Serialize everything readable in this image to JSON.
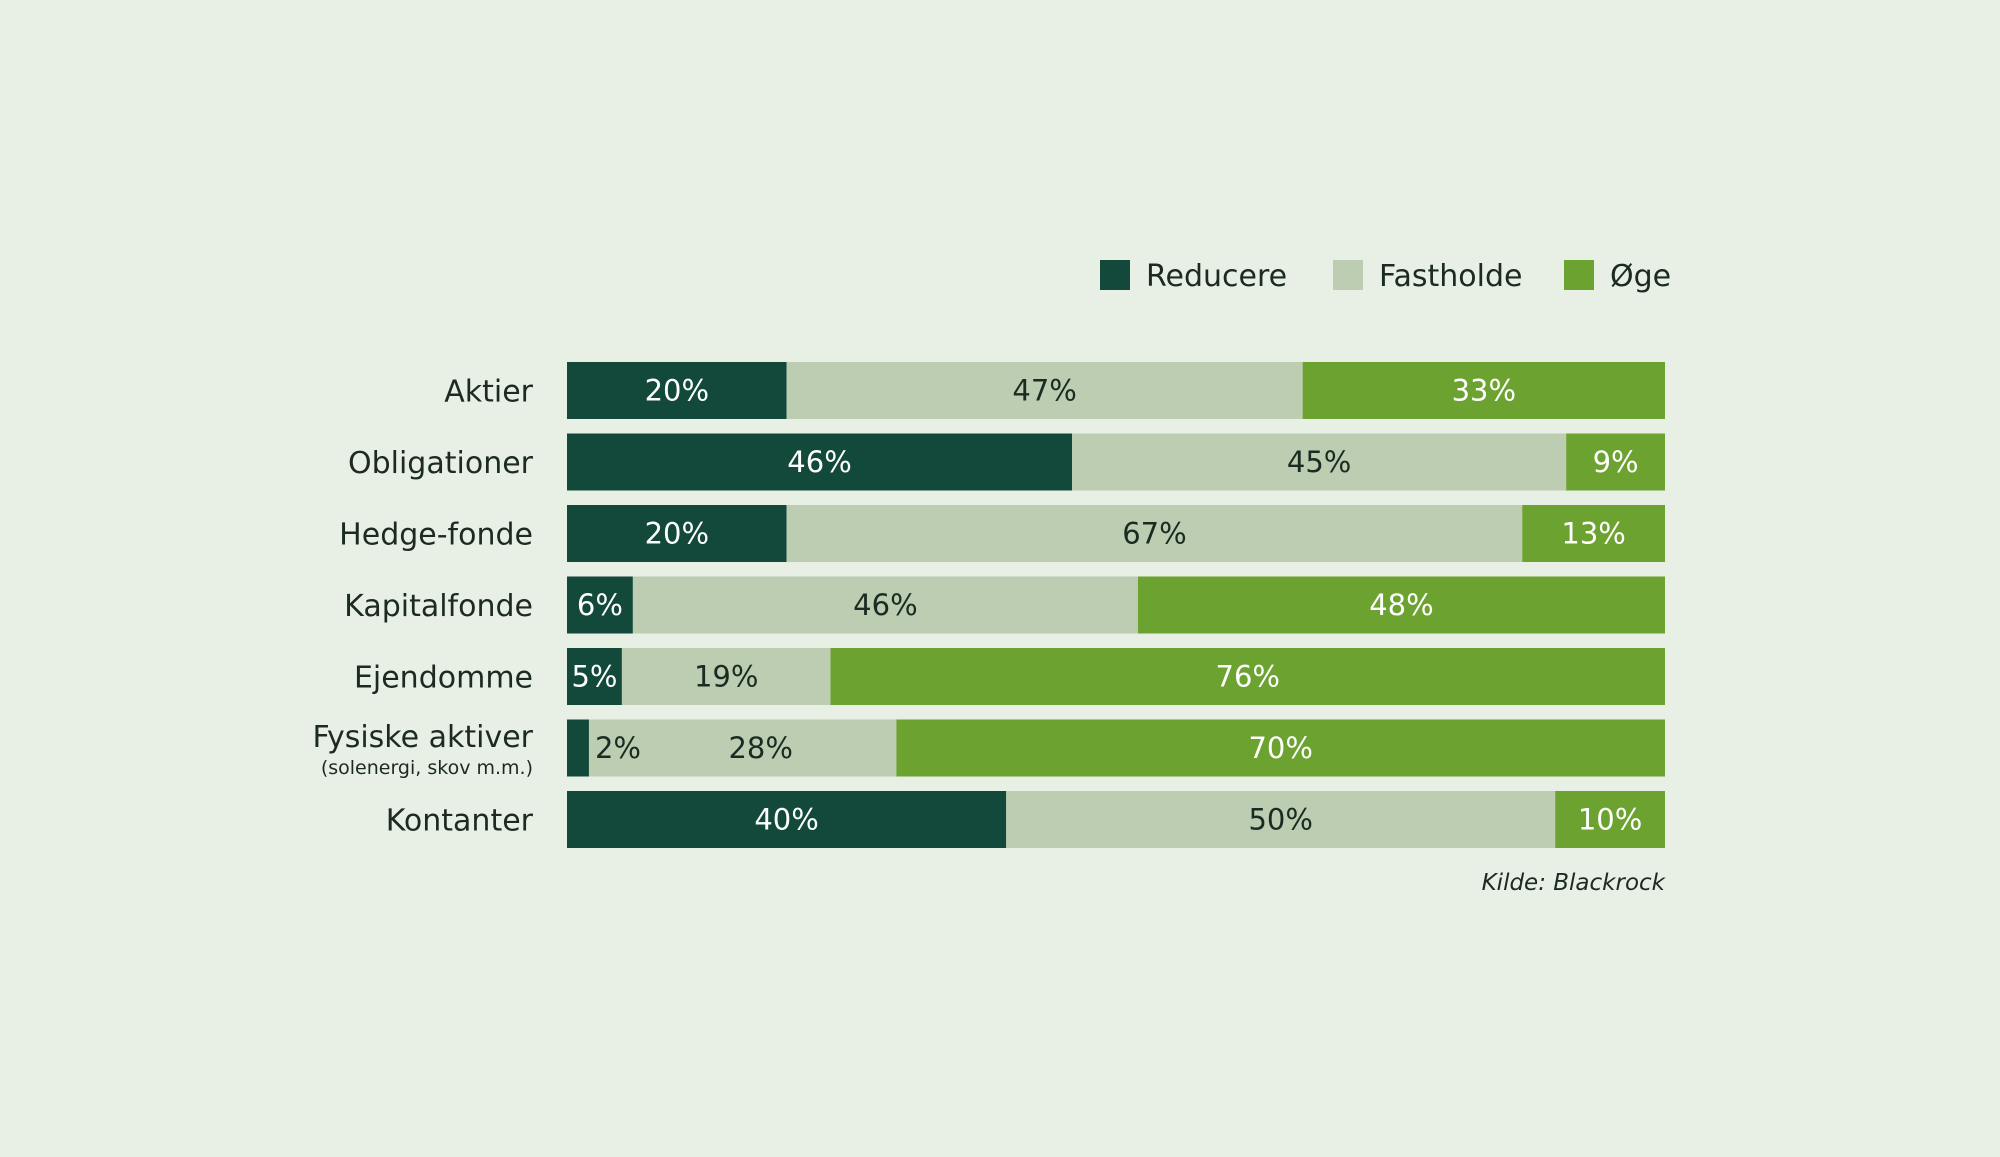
{
  "chart_data": {
    "type": "bar",
    "orientation": "horizontal",
    "stacked": true,
    "categories": [
      "Aktier",
      "Obligationer",
      "Hedge-fonde",
      "Kapitalfonde",
      "Ejendomme",
      "Fysiske aktiver",
      "Kontanter"
    ],
    "category_sublabels": [
      "",
      "",
      "",
      "",
      "",
      "(solenergi, skov m.m.)",
      ""
    ],
    "series": [
      {
        "name": "Reducere",
        "color": "#12493a",
        "label_color": "#ffffff",
        "values": [
          20,
          46,
          20,
          6,
          5,
          2,
          40
        ]
      },
      {
        "name": "Fastholde",
        "color": "#bccdb2",
        "label_color": "#1c2b22",
        "values": [
          47,
          45,
          67,
          46,
          19,
          28,
          50
        ]
      },
      {
        "name": "Øge",
        "color": "#6ca22f",
        "label_color": "#ffffff",
        "values": [
          33,
          9,
          13,
          48,
          76,
          70,
          10
        ]
      }
    ],
    "value_suffix": "%",
    "xlim": [
      0,
      100
    ],
    "grid": false,
    "legend_position": "top-right",
    "source": "Kilde: Blackrock"
  }
}
